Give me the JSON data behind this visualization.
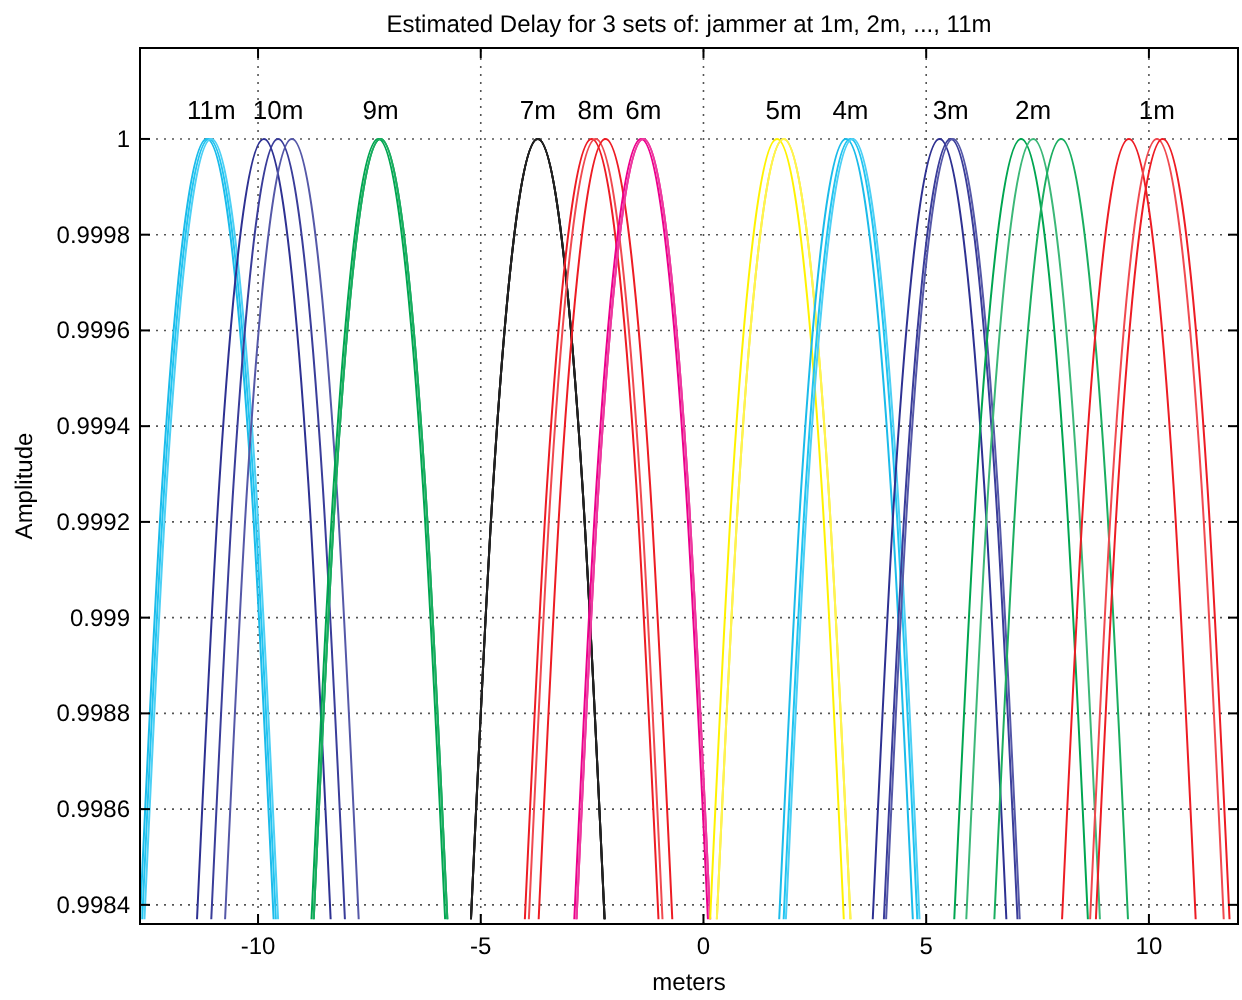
{
  "chart_data": {
    "type": "line",
    "title": "Estimated Delay for 3 sets of: jammer at 1m, 2m, ..., 11m",
    "xlabel": "meters",
    "ylabel": "Amplitude",
    "xlim": [
      -12.65,
      12
    ],
    "ylim": [
      0.99836,
      1.00019
    ],
    "xticks": [
      -10,
      -5,
      0,
      5,
      10
    ],
    "yticks": [
      {
        "value": 0.9984,
        "label": "0.9984"
      },
      {
        "value": 0.9986,
        "label": "0.9986"
      },
      {
        "value": 0.9988,
        "label": "0.9988"
      },
      {
        "value": 0.999,
        "label": "0.999"
      },
      {
        "value": 0.9992,
        "label": "0.9992"
      },
      {
        "value": 0.9994,
        "label": "0.9994"
      },
      {
        "value": 0.9996,
        "label": "0.9996"
      },
      {
        "value": 0.9998,
        "label": "0.9998"
      },
      {
        "value": 1,
        "label": "1"
      }
    ],
    "grid": true,
    "line_style": "solid",
    "marker": "none",
    "series": [
      {
        "color": "#1bbbea",
        "x": [
          -12.65,
          -12.15,
          -11.65,
          -11.15,
          -10.65,
          -10.15,
          -9.65
        ],
        "values": [
          0.99837,
          0.99928,
          0.99982,
          1,
          0.99982,
          0.99928,
          0.99837
        ]
      },
      {
        "color": "#21c4f0",
        "x": [
          -12.6,
          -12.1,
          -11.6,
          -11.1,
          -10.6,
          -10.1,
          -9.6
        ],
        "values": [
          0.99837,
          0.99928,
          0.99982,
          1,
          0.99982,
          0.99928,
          0.99837
        ]
      },
      {
        "color": "#4dd0f5",
        "x": [
          -12.55,
          -12.05,
          -11.55,
          -11.05,
          -10.55,
          -10.05,
          -9.55
        ],
        "values": [
          0.99837,
          0.99928,
          0.99982,
          1,
          0.99982,
          0.99928,
          0.99837
        ]
      },
      {
        "color": "#2e3192",
        "x": [
          -11.37,
          -10.87,
          -10.37,
          -9.87,
          -9.37,
          -8.87,
          -8.37
        ],
        "values": [
          0.99837,
          0.99928,
          0.99982,
          1,
          0.99982,
          0.99928,
          0.99837
        ]
      },
      {
        "color": "#3a3d9a",
        "x": [
          -11.05,
          -10.55,
          -10.05,
          -9.55,
          -9.05,
          -8.55,
          -8.05
        ],
        "values": [
          0.99837,
          0.99928,
          0.99982,
          1,
          0.99982,
          0.99928,
          0.99837
        ]
      },
      {
        "color": "#5558a8",
        "x": [
          -10.74,
          -10.24,
          -9.74,
          -9.24,
          -8.74,
          -8.24,
          -7.74
        ],
        "values": [
          0.99837,
          0.99928,
          0.99982,
          1,
          0.99982,
          0.99928,
          0.99837
        ]
      },
      {
        "color": "#00a651",
        "x": [
          -8.8,
          -8.3,
          -7.8,
          -7.3,
          -6.8,
          -6.3,
          -5.8
        ],
        "values": [
          0.99837,
          0.99928,
          0.99982,
          1,
          0.99982,
          0.99928,
          0.99837
        ]
      },
      {
        "color": "#00a651",
        "x": [
          -8.75,
          -8.25,
          -7.75,
          -7.25,
          -6.75,
          -6.25,
          -5.75
        ],
        "values": [
          0.99837,
          0.99928,
          0.99982,
          1,
          0.99982,
          0.99928,
          0.99837
        ]
      },
      {
        "color": "#1aae60",
        "x": [
          -8.75,
          -8.25,
          -7.75,
          -7.25,
          -6.75,
          -6.25,
          -5.75
        ],
        "values": [
          0.99837,
          0.99928,
          0.99982,
          1,
          0.99982,
          0.99928,
          0.99837
        ]
      },
      {
        "color": "#000000",
        "x": [
          -5.22,
          -4.72,
          -4.22,
          -3.72,
          -3.22,
          -2.72,
          -2.22
        ],
        "values": [
          0.99837,
          0.99928,
          0.99982,
          1,
          0.99982,
          0.99928,
          0.99837
        ]
      },
      {
        "color": "#111111",
        "x": [
          -5.22,
          -4.72,
          -4.22,
          -3.72,
          -3.22,
          -2.72,
          -2.22
        ],
        "values": [
          0.99837,
          0.99928,
          0.99982,
          1,
          0.99982,
          0.99928,
          0.99837
        ]
      },
      {
        "color": "#222222",
        "x": [
          -5.22,
          -4.72,
          -4.22,
          -3.72,
          -3.22,
          -2.72,
          -2.22
        ],
        "values": [
          0.99837,
          0.99928,
          0.99982,
          1,
          0.99982,
          0.99928,
          0.99837
        ]
      },
      {
        "color": "#ed1c24",
        "x": [
          -4.01,
          -3.51,
          -3.01,
          -2.51,
          -2.01,
          -1.51,
          -1.01
        ],
        "values": [
          0.99837,
          0.99928,
          0.99982,
          1,
          0.99982,
          0.99928,
          0.99837
        ]
      },
      {
        "color": "#f04a50",
        "x": [
          -3.92,
          -3.42,
          -2.92,
          -2.42,
          -1.92,
          -1.42,
          -0.92
        ],
        "values": [
          0.99837,
          0.99928,
          0.99982,
          1,
          0.99982,
          0.99928,
          0.99837
        ]
      },
      {
        "color": "#ed1c24",
        "x": [
          -3.7,
          -3.2,
          -2.7,
          -2.2,
          -1.7,
          -1.2,
          -0.7
        ],
        "values": [
          0.99837,
          0.99928,
          0.99982,
          1,
          0.99982,
          0.99928,
          0.99837
        ]
      },
      {
        "color": "#ec008c",
        "x": [
          -2.9,
          -2.4,
          -1.9,
          -1.4,
          -0.9,
          -0.4,
          0.1
        ],
        "values": [
          0.99837,
          0.99928,
          0.99982,
          1,
          0.99982,
          0.99928,
          0.99837
        ]
      },
      {
        "color": "#ec1a96",
        "x": [
          -2.85,
          -2.35,
          -1.85,
          -1.35,
          -0.85,
          -0.35,
          0.15
        ],
        "values": [
          0.99837,
          0.99928,
          0.99982,
          1,
          0.99982,
          0.99928,
          0.99837
        ]
      },
      {
        "color": "#ee3a9f",
        "x": [
          -2.85,
          -2.35,
          -1.85,
          -1.35,
          -0.85,
          -0.35,
          0.15
        ],
        "values": [
          0.99837,
          0.99928,
          0.99982,
          1,
          0.99982,
          0.99928,
          0.99837
        ]
      },
      {
        "color": "#fff200",
        "x": [
          0.15,
          0.65,
          1.15,
          1.65,
          2.15,
          2.65,
          3.15
        ],
        "values": [
          0.99837,
          0.99928,
          0.99982,
          1,
          0.99982,
          0.99928,
          0.99837
        ]
      },
      {
        "color": "#f5e61a",
        "x": [
          0.3,
          0.8,
          1.3,
          1.8,
          2.3,
          2.8,
          3.3
        ],
        "values": [
          0.99837,
          0.99928,
          0.99982,
          1,
          0.99982,
          0.99928,
          0.99837
        ]
      },
      {
        "color": "#fff44f",
        "x": [
          0.3,
          0.8,
          1.3,
          1.8,
          2.3,
          2.8,
          3.3
        ],
        "values": [
          0.99837,
          0.99928,
          0.99982,
          1,
          0.99982,
          0.99928,
          0.99837
        ]
      },
      {
        "color": "#1bbbea",
        "x": [
          1.7,
          2.2,
          2.7,
          3.2,
          3.7,
          4.2,
          4.7
        ],
        "values": [
          0.99837,
          0.99928,
          0.99982,
          1,
          0.99982,
          0.99928,
          0.99837
        ]
      },
      {
        "color": "#21c4f0",
        "x": [
          1.8,
          2.3,
          2.8,
          3.3,
          3.8,
          4.3,
          4.8
        ],
        "values": [
          0.99837,
          0.99928,
          0.99982,
          1,
          0.99982,
          0.99928,
          0.99837
        ]
      },
      {
        "color": "#4dd0f5",
        "x": [
          1.85,
          2.35,
          2.85,
          3.35,
          3.85,
          4.35,
          4.85
        ],
        "values": [
          0.99837,
          0.99928,
          0.99982,
          1,
          0.99982,
          0.99928,
          0.99837
        ]
      },
      {
        "color": "#2e3192",
        "x": [
          3.8,
          4.3,
          4.8,
          5.3,
          5.8,
          6.3,
          6.8
        ],
        "values": [
          0.99837,
          0.99928,
          0.99982,
          1,
          0.99982,
          0.99928,
          0.99837
        ]
      },
      {
        "color": "#3a3d9a",
        "x": [
          4.05,
          4.55,
          5.05,
          5.55,
          6.05,
          6.55,
          7.05
        ],
        "values": [
          0.99837,
          0.99928,
          0.99982,
          1,
          0.99982,
          0.99928,
          0.99837
        ]
      },
      {
        "color": "#5558a8",
        "x": [
          4.1,
          4.6,
          5.1,
          5.6,
          6.1,
          6.6,
          7.1
        ],
        "values": [
          0.99837,
          0.99928,
          0.99982,
          1,
          0.99982,
          0.99928,
          0.99837
        ]
      },
      {
        "color": "#00a651",
        "x": [
          5.63,
          6.13,
          6.63,
          7.13,
          7.63,
          8.13,
          8.63
        ],
        "values": [
          0.99837,
          0.99928,
          0.99982,
          1,
          0.99982,
          0.99928,
          0.99837
        ]
      },
      {
        "color": "#3cb878",
        "x": [
          5.9,
          6.4,
          6.9,
          7.4,
          7.9,
          8.4,
          8.9
        ],
        "values": [
          0.99837,
          0.99928,
          0.99982,
          1,
          0.99982,
          0.99928,
          0.99837
        ]
      },
      {
        "color": "#1aae60",
        "x": [
          6.53,
          7.03,
          7.53,
          8.03,
          8.53,
          9.03,
          9.53
        ],
        "values": [
          0.99837,
          0.99928,
          0.99982,
          1,
          0.99982,
          0.99928,
          0.99837
        ]
      },
      {
        "color": "#ed1c24",
        "x": [
          8.05,
          8.55,
          9.05,
          9.55,
          10.05,
          10.55,
          11.05
        ],
        "values": [
          0.99837,
          0.99928,
          0.99982,
          1,
          0.99982,
          0.99928,
          0.99837
        ]
      },
      {
        "color": "#f04a50",
        "x": [
          8.68,
          9.18,
          9.68,
          10.18,
          10.68,
          11.18,
          11.68
        ],
        "values": [
          0.99837,
          0.99928,
          0.99982,
          1,
          0.99982,
          0.99928,
          0.99837
        ]
      },
      {
        "color": "#ed1c24",
        "x": [
          8.81,
          9.31,
          9.81,
          10.31,
          10.81,
          11.31,
          11.81
        ],
        "values": [
          0.99837,
          0.99928,
          0.99982,
          1,
          0.99982,
          0.99928,
          0.99837
        ]
      }
    ],
    "annotations": [
      {
        "text": "11m",
        "x": -11.05,
        "y": 1
      },
      {
        "text": "10m",
        "x": -9.55,
        "y": 1
      },
      {
        "text": "9m",
        "x": -7.25,
        "y": 1
      },
      {
        "text": "7m",
        "x": -3.72,
        "y": 1
      },
      {
        "text": "8m",
        "x": -2.42,
        "y": 1
      },
      {
        "text": "6m",
        "x": -1.35,
        "y": 1
      },
      {
        "text": "5m",
        "x": 1.8,
        "y": 1
      },
      {
        "text": "4m",
        "x": 3.3,
        "y": 1
      },
      {
        "text": "3m",
        "x": 5.55,
        "y": 1
      },
      {
        "text": "2m",
        "x": 7.4,
        "y": 1
      },
      {
        "text": "1m",
        "x": 10.18,
        "y": 1
      }
    ]
  }
}
